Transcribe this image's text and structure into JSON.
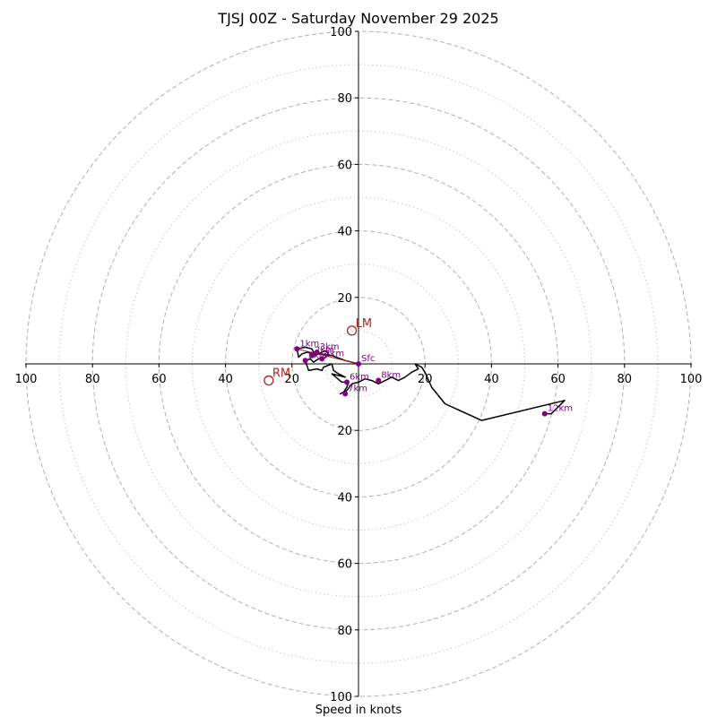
{
  "chart_data": {
    "type": "hodograph",
    "title": "TJSJ 00Z - Saturday November 29 2025",
    "xlabel": "Speed in knots",
    "xlim": [
      -100,
      100
    ],
    "ylim": [
      -100,
      100
    ],
    "ring_major": [
      20,
      40,
      60,
      80,
      100
    ],
    "ring_minor": [
      10,
      30,
      50,
      70,
      90
    ],
    "x_ticks": [
      "100",
      "80",
      "60",
      "40",
      "20",
      "20",
      "40",
      "60",
      "80",
      "100"
    ],
    "x_tick_values": [
      -100,
      -80,
      -60,
      -40,
      -20,
      20,
      40,
      60,
      80,
      100
    ],
    "y_ticks": [
      "100",
      "80",
      "60",
      "40",
      "20",
      "20",
      "40",
      "60",
      "80",
      "100"
    ],
    "y_tick_values": [
      100,
      80,
      60,
      40,
      20,
      -20,
      -40,
      -60,
      -80,
      -100
    ],
    "colors": {
      "trace": "#000000",
      "height_marker": "#800080",
      "storm_motion": "#b22222",
      "grid": "#b0b0b0"
    },
    "hodograph_trace": [
      [
        0,
        0
      ],
      [
        -4,
        1
      ],
      [
        -8,
        2.5
      ],
      [
        -12,
        3
      ],
      [
        -15.5,
        3.5
      ],
      [
        -17,
        3
      ],
      [
        -18,
        2
      ],
      [
        -18.5,
        4.5
      ],
      [
        -16,
        5
      ],
      [
        -14,
        4.5
      ],
      [
        -13,
        2.5
      ],
      [
        -11,
        3.5
      ],
      [
        -10,
        4
      ],
      [
        -9,
        3
      ],
      [
        -10.5,
        1.5
      ],
      [
        -12,
        1.5
      ],
      [
        -13.5,
        0.5
      ],
      [
        -14.5,
        1.5
      ],
      [
        -16,
        1
      ],
      [
        -15,
        -2
      ],
      [
        -12.5,
        -1.5
      ],
      [
        -11,
        -2
      ],
      [
        -10.5,
        -1
      ],
      [
        -8,
        0
      ],
      [
        -7.5,
        -2
      ],
      [
        -6,
        -3
      ],
      [
        -4,
        -4
      ],
      [
        -6,
        -3.5
      ],
      [
        -8,
        -3
      ],
      [
        -5,
        -5.5
      ],
      [
        -3,
        -5.5
      ],
      [
        -3.5,
        -7
      ],
      [
        -4.5,
        -8.5
      ],
      [
        -5.5,
        -9
      ],
      [
        -3.5,
        -8
      ],
      [
        -2,
        -6
      ],
      [
        0,
        -5.5
      ],
      [
        2,
        -4.5
      ],
      [
        4,
        -5
      ],
      [
        6,
        -6
      ],
      [
        8,
        -5
      ],
      [
        10,
        -4
      ],
      [
        12,
        -5
      ],
      [
        14,
        -4
      ],
      [
        16,
        -2.5
      ],
      [
        18,
        -1.5
      ],
      [
        17,
        0
      ],
      [
        19,
        -1
      ],
      [
        20,
        -2.5
      ],
      [
        22,
        -7
      ],
      [
        26,
        -12
      ],
      [
        37,
        -17
      ],
      [
        62,
        -11
      ],
      [
        58,
        -15
      ],
      [
        56,
        -15
      ]
    ],
    "height_markers": [
      {
        "label": "Sfc",
        "u": 0,
        "v": 0
      },
      {
        "label": "1km",
        "u": -18.5,
        "v": 4.5
      },
      {
        "label": "2km",
        "u": -14,
        "v": 2.5
      },
      {
        "label": "3km",
        "u": -12.5,
        "v": 3.5
      },
      {
        "label": "4km",
        "u": -11,
        "v": 1.5
      },
      {
        "label": "5km",
        "u": -16,
        "v": 1
      },
      {
        "label": "6km",
        "u": -3.5,
        "v": -5.5
      },
      {
        "label": "7km",
        "u": -4,
        "v": -9
      },
      {
        "label": "8km",
        "u": 6,
        "v": -5
      },
      {
        "label": "12km",
        "u": 56,
        "v": -15
      }
    ],
    "height_marker_lines": [
      {
        "from": [
          -18.5,
          4.5
        ],
        "to": [
          0,
          0
        ]
      }
    ],
    "storm_motion": [
      {
        "label": "LM",
        "u": -2,
        "v": 10
      },
      {
        "label": "RM",
        "u": -27,
        "v": -5
      }
    ]
  }
}
